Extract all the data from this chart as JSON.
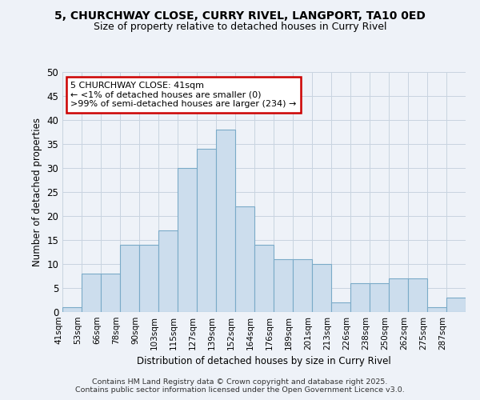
{
  "title_line1": "5, CHURCHWAY CLOSE, CURRY RIVEL, LANGPORT, TA10 0ED",
  "title_line2": "Size of property relative to detached houses in Curry Rivel",
  "xlabel": "Distribution of detached houses by size in Curry Rivel",
  "ylabel": "Number of detached properties",
  "categories": [
    "41sqm",
    "53sqm",
    "66sqm",
    "78sqm",
    "90sqm",
    "103sqm",
    "115sqm",
    "127sqm",
    "139sqm",
    "152sqm",
    "164sqm",
    "176sqm",
    "189sqm",
    "201sqm",
    "213sqm",
    "226sqm",
    "238sqm",
    "250sqm",
    "262sqm",
    "275sqm",
    "287sqm"
  ],
  "heights": [
    1,
    8,
    8,
    14,
    14,
    17,
    30,
    34,
    38,
    22,
    14,
    11,
    11,
    10,
    2,
    6,
    6,
    7,
    7,
    1,
    3
  ],
  "bar_color": "#ccdded",
  "bar_edge_color": "#7aaac8",
  "annotation_text": "5 CHURCHWAY CLOSE: 41sqm\n← <1% of detached houses are smaller (0)\n>99% of semi-detached houses are larger (234) →",
  "annotation_box_color": "#ffffff",
  "annotation_box_edge": "#cc0000",
  "ylim": [
    0,
    50
  ],
  "yticks": [
    0,
    5,
    10,
    15,
    20,
    25,
    30,
    35,
    40,
    45,
    50
  ],
  "grid_color": "#c8d4e0",
  "background_color": "#eef2f8",
  "footer_line1": "Contains HM Land Registry data © Crown copyright and database right 2025.",
  "footer_line2": "Contains public sector information licensed under the Open Government Licence v3.0."
}
